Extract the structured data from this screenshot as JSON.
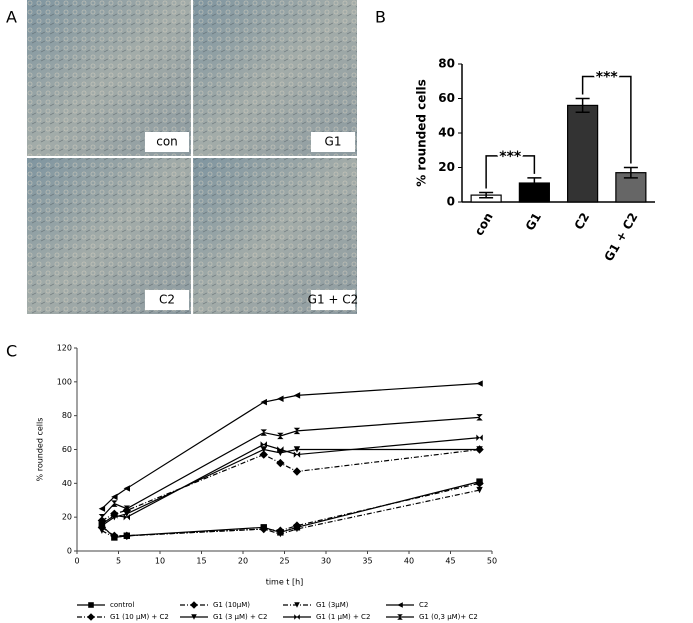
{
  "panel_labels": [
    "A",
    "B",
    "C"
  ],
  "images": [
    {
      "label": "con"
    },
    {
      "label": "G1"
    },
    {
      "label": "C2"
    },
    {
      "label": "G1 + C2"
    }
  ],
  "chart_data": [
    {
      "type": "bar",
      "y_label": "% rounded cells",
      "categories": [
        "con",
        "G1",
        "C2",
        "G1 + C2"
      ],
      "values": [
        4,
        11,
        56,
        17
      ],
      "errors": [
        1.5,
        3,
        4,
        3
      ],
      "colors": [
        "#ffffff",
        "#000000",
        "#333333",
        "#666666"
      ],
      "ylim": [
        0,
        80
      ],
      "yticks": [
        0,
        20,
        40,
        60,
        80
      ],
      "annotations": [
        {
          "from": 0,
          "to": 1,
          "label": "***"
        },
        {
          "from": 2,
          "to": 3,
          "label": "***"
        }
      ]
    },
    {
      "type": "line",
      "x_label": "time t [h]",
      "y_label": "% rounded cells",
      "x": [
        3,
        4.5,
        6,
        22.5,
        24.5,
        26.5,
        48.5
      ],
      "xlim": [
        0,
        50
      ],
      "xticks": [
        0,
        5,
        10,
        15,
        20,
        25,
        30,
        35,
        40,
        45,
        50
      ],
      "ylim": [
        0,
        120
      ],
      "yticks": [
        0,
        20,
        40,
        60,
        80,
        100,
        120
      ],
      "series": [
        {
          "name": "control",
          "color": "#000000",
          "marker": "square",
          "dash": "solid",
          "values": [
            15,
            8,
            9,
            14,
            11,
            14,
            41
          ]
        },
        {
          "name": "G1 (10µM)",
          "color": "#000000",
          "marker": "diamond",
          "dash": "dashdot",
          "values": [
            14,
            9,
            9,
            13,
            12,
            15,
            40
          ]
        },
        {
          "name": "G1 (3µM)",
          "color": "#000000",
          "marker": "down",
          "dash": "dashdot",
          "values": [
            12,
            8,
            9,
            13,
            10,
            13,
            36
          ]
        },
        {
          "name": "C2",
          "color": "#000000",
          "marker": "left",
          "dash": "solid",
          "values": [
            25,
            32,
            37,
            88,
            90,
            92,
            99
          ]
        },
        {
          "name": "G1 (10 µM) + C2",
          "color": "#000000",
          "marker": "diamond",
          "dash": "dashdot",
          "values": [
            18,
            22,
            24,
            57,
            52,
            47,
            60
          ]
        },
        {
          "name": "G1 (3 µM) + C2",
          "color": "#000000",
          "marker": "down",
          "dash": "solid",
          "values": [
            15,
            20,
            22,
            60,
            58,
            60,
            60
          ]
        },
        {
          "name": "G1 (1 µM) + C2",
          "color": "#000000",
          "marker": "bowtie",
          "dash": "solid",
          "values": [
            16,
            21,
            20,
            63,
            60,
            57,
            67
          ]
        },
        {
          "name": "G1 (0,3 µM)+ C2",
          "color": "#000000",
          "marker": "hourglass",
          "dash": "solid",
          "values": [
            20,
            28,
            25,
            70,
            68,
            71,
            79
          ]
        }
      ]
    }
  ]
}
